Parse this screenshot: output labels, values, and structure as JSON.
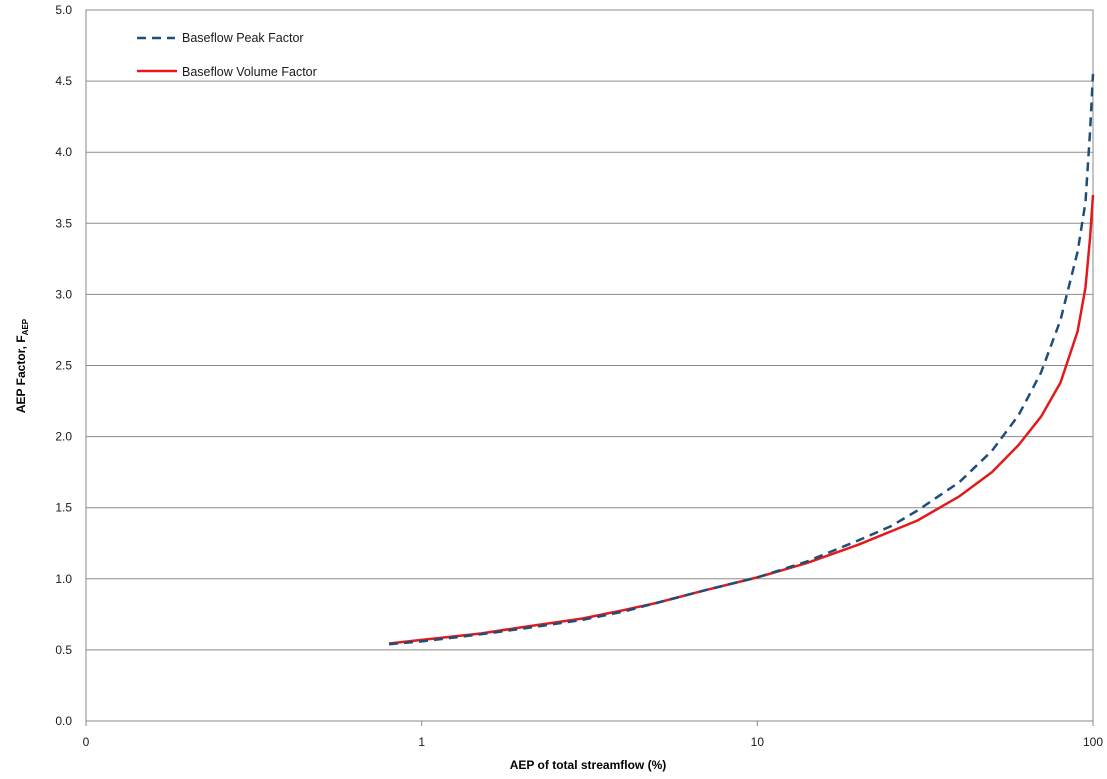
{
  "chart_data": {
    "type": "line",
    "title": "",
    "xlabel": "AEP of total streamflow (%)",
    "ylabel_main": "AEP Factor, F",
    "ylabel_sub": "AEP",
    "x_scale": "log",
    "x_tick_labels": [
      "0",
      "1",
      "10",
      "100"
    ],
    "y_tick_labels": [
      "0.0",
      "0.5",
      "1.0",
      "1.5",
      "2.0",
      "2.5",
      "3.0",
      "3.5",
      "4.0",
      "4.5",
      "5.0"
    ],
    "ylim": [
      0,
      5
    ],
    "grid": "horizontal",
    "legend_position": "top-left",
    "series": [
      {
        "name": "Baseflow Peak Factor",
        "color": "#1f4e79",
        "dash": "dashed",
        "points": [
          [
            0.8,
            0.54
          ],
          [
            1,
            0.56
          ],
          [
            1.5,
            0.61
          ],
          [
            2,
            0.65
          ],
          [
            3,
            0.71
          ],
          [
            4,
            0.77
          ],
          [
            5,
            0.83
          ],
          [
            7,
            0.92
          ],
          [
            10,
            1.01
          ],
          [
            14,
            1.12
          ],
          [
            20,
            1.27
          ],
          [
            25,
            1.37
          ],
          [
            30,
            1.48
          ],
          [
            40,
            1.68
          ],
          [
            50,
            1.9
          ],
          [
            60,
            2.15
          ],
          [
            70,
            2.45
          ],
          [
            80,
            2.82
          ],
          [
            90,
            3.3
          ],
          [
            95,
            3.65
          ],
          [
            98,
            4.15
          ],
          [
            100,
            4.55
          ]
        ]
      },
      {
        "name": "Baseflow Volume Factor",
        "color": "#e31a1c",
        "dash": "solid",
        "points": [
          [
            0.8,
            0.545
          ],
          [
            1,
            0.57
          ],
          [
            1.5,
            0.615
          ],
          [
            2,
            0.66
          ],
          [
            3,
            0.72
          ],
          [
            4,
            0.78
          ],
          [
            5,
            0.83
          ],
          [
            7,
            0.92
          ],
          [
            10,
            1.01
          ],
          [
            14,
            1.11
          ],
          [
            20,
            1.24
          ],
          [
            30,
            1.41
          ],
          [
            40,
            1.58
          ],
          [
            50,
            1.75
          ],
          [
            60,
            1.94
          ],
          [
            70,
            2.14
          ],
          [
            80,
            2.38
          ],
          [
            90,
            2.74
          ],
          [
            95,
            3.05
          ],
          [
            98,
            3.4
          ],
          [
            100,
            3.7
          ]
        ]
      }
    ]
  }
}
